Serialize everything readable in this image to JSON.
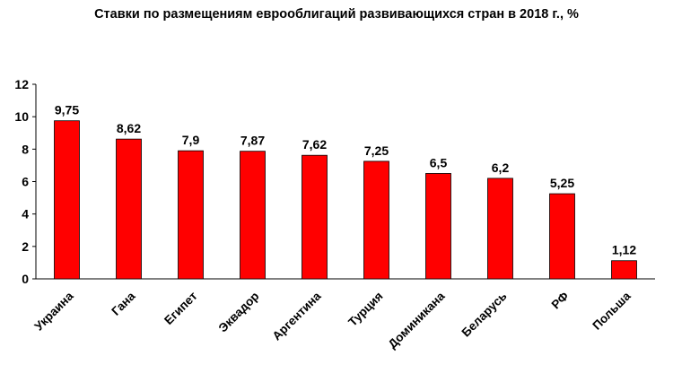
{
  "chart_data": {
    "type": "bar",
    "title": "Ставки по размещениям еврооблигаций развивающихся стран в 2018 г., %",
    "categories": [
      "Украина",
      "Гана",
      "Египет",
      "Эквадор",
      "Аргентина",
      "Турция",
      "Доминикана",
      "Беларусь",
      "РФ",
      "Польша"
    ],
    "values": [
      9.75,
      8.62,
      7.9,
      7.87,
      7.62,
      7.25,
      6.5,
      6.2,
      5.25,
      1.12
    ],
    "value_labels": [
      "9,75",
      "8,62",
      "7,9",
      "7,87",
      "7,62",
      "7,25",
      "6,5",
      "6,2",
      "5,25",
      "1,12"
    ],
    "y_ticks": [
      "0",
      "2",
      "4",
      "6",
      "8",
      "10",
      "12"
    ],
    "ylim": [
      0,
      12
    ],
    "xlabel": "",
    "ylabel": "",
    "grid": false,
    "legend": "none",
    "bar_color": "#ff0000",
    "bar_border_color": "#000000"
  }
}
